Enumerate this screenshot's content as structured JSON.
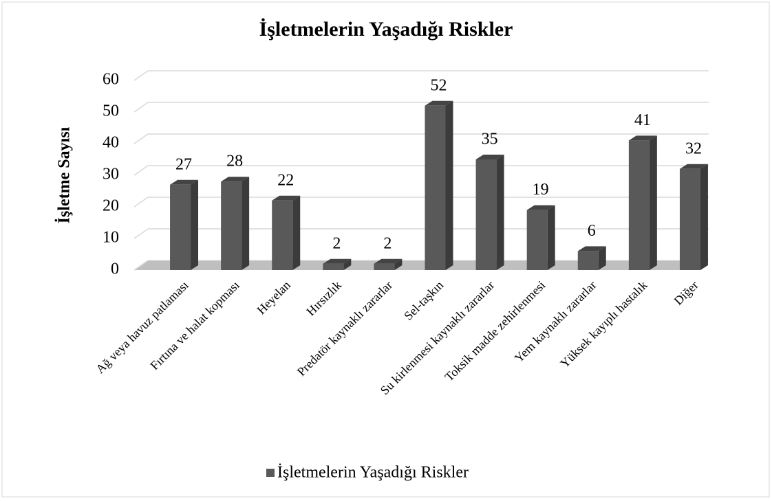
{
  "chart_data": {
    "type": "bar",
    "title": "İşletmelerin Yaşadığı Riskler",
    "y_label": "İşletme Sayısı",
    "categories": [
      "Ağ veya havuz patlaması",
      "Fırtına ve halat kopması",
      "Heyelan",
      "Hırsızlık",
      "Predatör kaynaklı zararlar",
      "Sel-taşkın",
      "Su kirlenmesi kaynaklı zararlar",
      "Toksik madde zehirlenmesi",
      "Yem kaynaklı zararlar",
      "Yüksek kayıplı hastalık",
      "Diğer"
    ],
    "series": [
      {
        "name": "İşletmelerin Yaşadığı Riskler",
        "color": "#595959",
        "values": [
          27,
          28,
          22,
          2,
          2,
          52,
          35,
          19,
          6,
          41,
          32
        ]
      }
    ],
    "ylim": [
      0,
      60
    ],
    "yticks": [
      0,
      10,
      20,
      30,
      40,
      50,
      60
    ],
    "grid": true,
    "legend": "bottom"
  }
}
